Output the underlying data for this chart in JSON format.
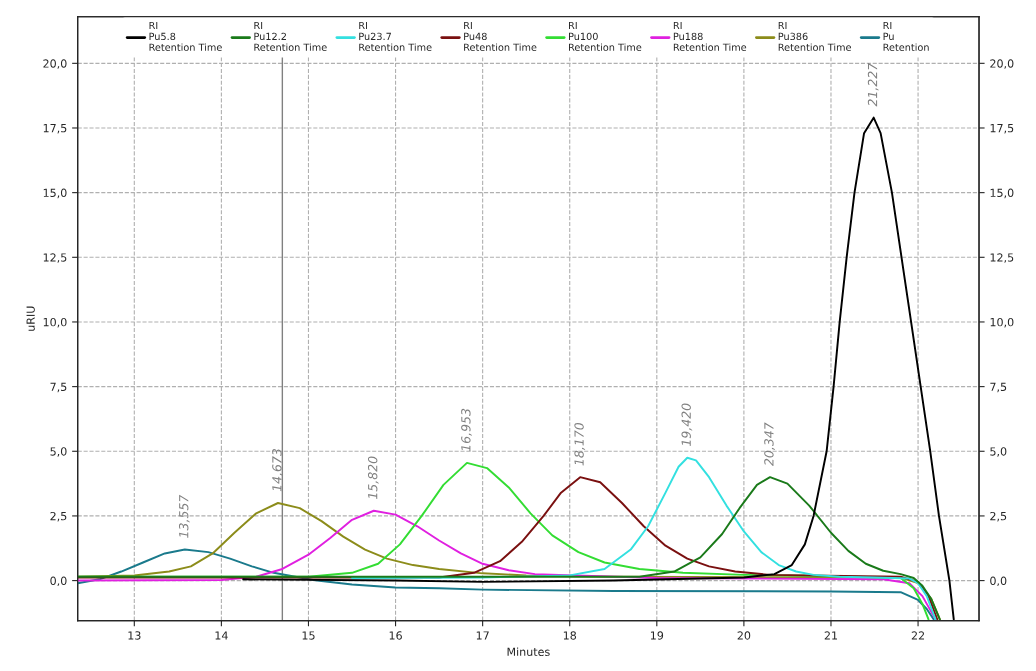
{
  "chart_data": {
    "type": "line",
    "xlabel": "Minutes",
    "ylabel": "uRIU",
    "xlim": [
      12.35,
      22.7
    ],
    "xticks": [
      13,
      14,
      15,
      16,
      17,
      18,
      19,
      20,
      21,
      22
    ],
    "ylim": [
      -1.55,
      21.8
    ],
    "yticks": [
      {
        "value": 0,
        "label": "0,0"
      },
      {
        "value": 2.5,
        "label": "2,5"
      },
      {
        "value": 5,
        "label": "5,0"
      },
      {
        "value": 7.5,
        "label": "7,5"
      },
      {
        "value": 10,
        "label": "10,0"
      },
      {
        "value": 12.5,
        "label": "12,5"
      },
      {
        "value": 15,
        "label": "15,0"
      },
      {
        "value": 17.5,
        "label": "17,5"
      },
      {
        "value": 20,
        "label": "20,0"
      }
    ],
    "y2lim": [
      -1.55,
      21.8
    ],
    "y2ticks": [
      {
        "value": 0,
        "label": "0,0"
      },
      {
        "value": 2.5,
        "label": "2,5"
      },
      {
        "value": 5,
        "label": "5,0"
      },
      {
        "value": 7.5,
        "label": "7,5"
      },
      {
        "value": 10,
        "label": "10,0"
      },
      {
        "value": 12.5,
        "label": "12,5"
      },
      {
        "value": 15,
        "label": "15,0"
      },
      {
        "value": 17.5,
        "label": "17,5"
      },
      {
        "value": 20,
        "label": "20,0"
      }
    ],
    "grid": true,
    "legend": "top",
    "marker": "none",
    "line_style": "solid",
    "ref_lines": [
      {
        "axis": "x",
        "value": 14.7,
        "color": "#808080",
        "line_style": "solid"
      }
    ],
    "annotations": [
      {
        "text": "13,557",
        "x": 13.58,
        "y": 1.2
      },
      {
        "text": "14,673",
        "x": 14.65,
        "y": 3.0
      },
      {
        "text": "15,820",
        "x": 15.75,
        "y": 2.7
      },
      {
        "text": "16,953",
        "x": 16.82,
        "y": 4.55
      },
      {
        "text": "18,170",
        "x": 18.12,
        "y": 4.0
      },
      {
        "text": "19,420",
        "x": 19.35,
        "y": 4.75
      },
      {
        "text": "20,347",
        "x": 20.3,
        "y": 4.0
      },
      {
        "text": "21,227",
        "x": 21.49,
        "y": 17.9
      }
    ],
    "series": [
      {
        "name": "RI\nPu5.8\nRetention Time",
        "color": "#000000",
        "x": [
          14.25,
          16.0,
          17.0,
          18.5,
          20.0,
          20.35,
          20.55,
          20.7,
          20.8,
          20.95,
          21.03,
          21.1,
          21.18,
          21.27,
          21.38,
          21.49,
          21.57,
          21.7,
          21.81,
          21.92,
          22.03,
          22.14,
          22.24,
          22.36,
          22.41
        ],
        "values": [
          0.05,
          0.0,
          -0.05,
          0.0,
          0.12,
          0.25,
          0.6,
          1.4,
          2.5,
          5.0,
          7.5,
          10.0,
          12.5,
          15.0,
          17.3,
          17.9,
          17.3,
          15.0,
          12.5,
          10.0,
          7.5,
          5.0,
          2.5,
          0.0,
          -1.5
        ]
      },
      {
        "name": "RI\nPu12.2\nRetention Time",
        "color": "#1a7a1a",
        "x": [
          12.35,
          18.8,
          19.2,
          19.5,
          19.75,
          19.95,
          20.15,
          20.3,
          20.5,
          20.75,
          21.0,
          21.2,
          21.4,
          21.6,
          21.8,
          21.95,
          22.05,
          22.15,
          22.25
        ],
        "values": [
          0.15,
          0.15,
          0.35,
          0.9,
          1.8,
          2.8,
          3.7,
          4.0,
          3.75,
          2.9,
          1.85,
          1.15,
          0.65,
          0.38,
          0.25,
          0.1,
          -0.2,
          -0.7,
          -1.5
        ]
      },
      {
        "name": "RI\nPu23.7\nRetention Time",
        "color": "#33e0e0",
        "x": [
          15.5,
          17.0,
          18.0,
          18.4,
          18.7,
          18.9,
          19.1,
          19.25,
          19.35,
          19.45,
          19.6,
          19.8,
          20.0,
          20.2,
          20.4,
          20.6,
          20.8,
          21.1,
          21.5,
          21.9,
          22.0,
          22.1,
          22.2
        ],
        "values": [
          0.1,
          0.12,
          0.2,
          0.45,
          1.2,
          2.1,
          3.4,
          4.4,
          4.75,
          4.65,
          4.0,
          2.9,
          1.9,
          1.1,
          0.6,
          0.35,
          0.22,
          0.15,
          0.12,
          0.08,
          -0.1,
          -0.6,
          -1.5
        ]
      },
      {
        "name": "RI\nPu48\nRetention Time",
        "color": "#7a1010",
        "x": [
          12.35,
          16.5,
          16.9,
          17.2,
          17.45,
          17.7,
          17.9,
          18.12,
          18.35,
          18.6,
          18.85,
          19.1,
          19.35,
          19.6,
          19.9,
          20.3,
          21.8,
          22.0,
          22.12,
          22.22
        ],
        "values": [
          0.12,
          0.12,
          0.3,
          0.75,
          1.5,
          2.5,
          3.4,
          4.0,
          3.8,
          3.0,
          2.1,
          1.35,
          0.85,
          0.55,
          0.35,
          0.22,
          0.15,
          -0.05,
          -0.6,
          -1.5
        ]
      },
      {
        "name": "RI\nPu100\nRetention Time",
        "color": "#33dd33",
        "x": [
          12.35,
          15.0,
          15.5,
          15.8,
          16.05,
          16.3,
          16.55,
          16.82,
          17.05,
          17.3,
          17.55,
          17.8,
          18.1,
          18.4,
          18.8,
          19.3,
          20.0,
          21.0,
          21.8,
          21.95,
          22.05,
          22.12
        ],
        "values": [
          0.15,
          0.15,
          0.3,
          0.65,
          1.4,
          2.5,
          3.7,
          4.55,
          4.35,
          3.6,
          2.6,
          1.75,
          1.1,
          0.7,
          0.45,
          0.3,
          0.22,
          0.18,
          0.1,
          -0.3,
          -0.9,
          -1.5
        ]
      },
      {
        "name": "RI\nPu188\nRetention Time",
        "color": "#e020e0",
        "x": [
          12.35,
          14.0,
          14.4,
          14.7,
          15.0,
          15.25,
          15.5,
          15.75,
          16.0,
          16.25,
          16.5,
          16.75,
          17.0,
          17.3,
          17.6,
          19.0,
          21.6,
          21.9,
          22.05,
          22.2
        ],
        "values": [
          0.0,
          0.02,
          0.15,
          0.45,
          1.0,
          1.65,
          2.35,
          2.7,
          2.55,
          2.1,
          1.55,
          1.05,
          0.65,
          0.4,
          0.25,
          0.1,
          0.05,
          -0.1,
          -0.6,
          -1.5
        ]
      },
      {
        "name": "RI\nPu386\nRetention Time",
        "color": "#8c8c1a",
        "x": [
          12.35,
          13.0,
          13.4,
          13.65,
          13.9,
          14.15,
          14.4,
          14.65,
          14.9,
          15.15,
          15.4,
          15.65,
          15.9,
          16.2,
          16.5,
          17.0,
          17.5,
          18.5,
          21.8,
          22.0,
          22.15,
          22.25
        ],
        "values": [
          0.15,
          0.2,
          0.35,
          0.55,
          1.05,
          1.85,
          2.6,
          3.0,
          2.8,
          2.3,
          1.7,
          1.2,
          0.85,
          0.6,
          0.45,
          0.28,
          0.2,
          0.15,
          0.12,
          -0.1,
          -0.7,
          -1.5
        ]
      },
      {
        "name": "RI\nPu\nRetention",
        "color": "#1a7a8c",
        "x": [
          12.35,
          12.6,
          12.85,
          13.1,
          13.35,
          13.58,
          13.85,
          14.1,
          14.35,
          14.6,
          14.85,
          15.1,
          15.5,
          16.0,
          16.5,
          17.0,
          18.5,
          21.0,
          21.8,
          22.0,
          22.1,
          22.18
        ],
        "values": [
          -0.1,
          0.05,
          0.35,
          0.7,
          1.05,
          1.2,
          1.1,
          0.85,
          0.55,
          0.3,
          0.15,
          0.0,
          -0.15,
          -0.27,
          -0.3,
          -0.35,
          -0.4,
          -0.42,
          -0.45,
          -0.75,
          -1.1,
          -1.5
        ]
      }
    ]
  }
}
